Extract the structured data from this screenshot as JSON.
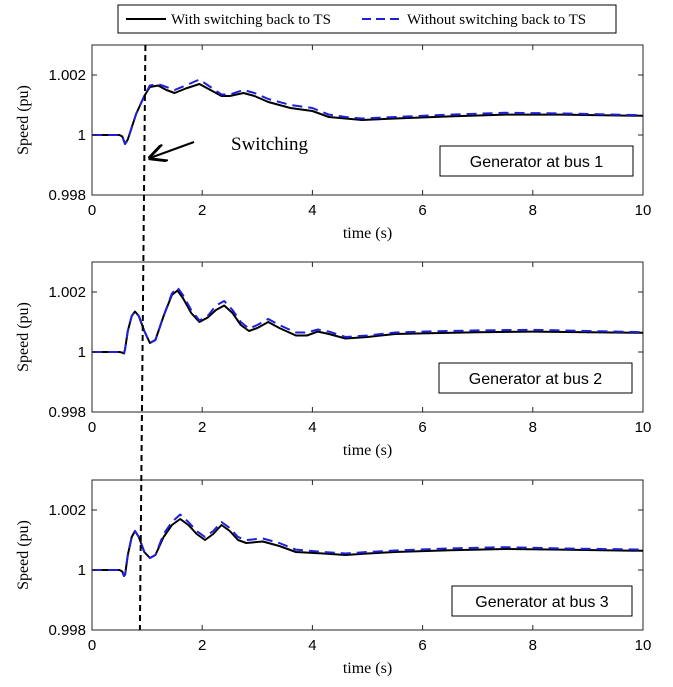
{
  "legend": {
    "items": [
      {
        "label": "With switching back to TS",
        "color": "#000000",
        "dash": "solid"
      },
      {
        "label": "Without switching back to TS",
        "color": "#1f1fd6",
        "dash": "dashed"
      }
    ],
    "placement": "top-center"
  },
  "annotation": {
    "text": "Switching"
  },
  "chart_data": [
    {
      "type": "line",
      "box_label": "Generator at bus 1",
      "xlabel": "time (s)",
      "ylabel": "Speed (pu)",
      "xlim": [
        0,
        10
      ],
      "ylim": [
        0.998,
        1.003
      ],
      "xticks": [
        0,
        2,
        4,
        6,
        8,
        10
      ],
      "yticks": [
        0.998,
        1,
        1.002
      ],
      "ytick_labels": [
        "0.998",
        "1",
        "1.002"
      ],
      "grid": false,
      "switch_time": 0.97,
      "series": [
        {
          "name": "With switching back to TS",
          "color": "#000000",
          "points": [
            [
              0,
              1.0
            ],
            [
              0.5,
              1.0
            ],
            [
              0.55,
              0.99995
            ],
            [
              0.6,
              0.9997
            ],
            [
              0.65,
              0.99985
            ],
            [
              0.8,
              1.0007
            ],
            [
              0.95,
              1.0013
            ],
            [
              1.05,
              1.0016
            ],
            [
              1.2,
              1.00165
            ],
            [
              1.35,
              1.0015
            ],
            [
              1.5,
              1.0014
            ],
            [
              1.7,
              1.00155
            ],
            [
              1.95,
              1.0017
            ],
            [
              2.15,
              1.0015
            ],
            [
              2.35,
              1.0013
            ],
            [
              2.5,
              1.0013
            ],
            [
              2.75,
              1.0014
            ],
            [
              2.95,
              1.0013
            ],
            [
              3.2,
              1.0011
            ],
            [
              3.6,
              1.0009
            ],
            [
              4.0,
              1.0008
            ],
            [
              4.3,
              1.0006
            ],
            [
              4.6,
              1.00055
            ],
            [
              4.9,
              1.0005
            ],
            [
              5.5,
              1.00055
            ],
            [
              6.5,
              1.00062
            ],
            [
              7.5,
              1.00068
            ],
            [
              8.5,
              1.00068
            ],
            [
              10,
              1.00064
            ]
          ]
        },
        {
          "name": "Without switching back to TS",
          "color": "#1f1fd6",
          "points": [
            [
              0,
              1.0
            ],
            [
              0.5,
              1.0
            ],
            [
              0.55,
              0.99995
            ],
            [
              0.6,
              0.9997
            ],
            [
              0.65,
              0.99985
            ],
            [
              0.8,
              1.0007
            ],
            [
              0.95,
              1.0013
            ],
            [
              1.05,
              1.00165
            ],
            [
              1.2,
              1.0017
            ],
            [
              1.35,
              1.0016
            ],
            [
              1.5,
              1.0015
            ],
            [
              1.7,
              1.00165
            ],
            [
              1.95,
              1.00185
            ],
            [
              2.15,
              1.0016
            ],
            [
              2.35,
              1.00135
            ],
            [
              2.5,
              1.00135
            ],
            [
              2.75,
              1.0015
            ],
            [
              2.95,
              1.0014
            ],
            [
              3.2,
              1.0012
            ],
            [
              3.6,
              1.001
            ],
            [
              4.0,
              1.0009
            ],
            [
              4.3,
              1.00068
            ],
            [
              4.6,
              1.0006
            ],
            [
              4.9,
              1.00055
            ],
            [
              5.5,
              1.0006
            ],
            [
              6.5,
              1.00068
            ],
            [
              7.5,
              1.00074
            ],
            [
              8.5,
              1.00072
            ],
            [
              10,
              1.00066
            ]
          ]
        }
      ]
    },
    {
      "type": "line",
      "box_label": "Generator at bus 2",
      "xlabel": "time (s)",
      "ylabel": "Speed (pu)",
      "xlim": [
        0,
        10
      ],
      "ylim": [
        0.998,
        1.003
      ],
      "xticks": [
        0,
        2,
        4,
        6,
        8,
        10
      ],
      "yticks": [
        0.998,
        1,
        1.002
      ],
      "ytick_labels": [
        "0.998",
        "1",
        "1.002"
      ],
      "grid": false,
      "switch_time": 0.92,
      "series": [
        {
          "name": "With switching back to TS",
          "color": "#000000",
          "points": [
            [
              0,
              1.0
            ],
            [
              0.5,
              1.0
            ],
            [
              0.55,
              0.99998
            ],
            [
              0.58,
              0.99995
            ],
            [
              0.6,
              1.0001
            ],
            [
              0.65,
              1.0007
            ],
            [
              0.72,
              1.0012
            ],
            [
              0.78,
              1.00135
            ],
            [
              0.85,
              1.0012
            ],
            [
              0.95,
              1.0007
            ],
            [
              1.05,
              1.0003
            ],
            [
              1.15,
              1.0004
            ],
            [
              1.3,
              1.0012
            ],
            [
              1.45,
              1.0019
            ],
            [
              1.55,
              1.00205
            ],
            [
              1.65,
              1.0018
            ],
            [
              1.8,
              1.0013
            ],
            [
              1.95,
              1.001
            ],
            [
              2.1,
              1.00115
            ],
            [
              2.25,
              1.0014
            ],
            [
              2.4,
              1.00155
            ],
            [
              2.55,
              1.0013
            ],
            [
              2.7,
              1.0009
            ],
            [
              2.85,
              1.0007
            ],
            [
              3.0,
              1.0008
            ],
            [
              3.2,
              1.001
            ],
            [
              3.4,
              1.0008
            ],
            [
              3.7,
              1.00055
            ],
            [
              3.9,
              1.00055
            ],
            [
              4.1,
              1.00068
            ],
            [
              4.3,
              1.0006
            ],
            [
              4.6,
              1.00045
            ],
            [
              5.0,
              1.0005
            ],
            [
              5.5,
              1.0006
            ],
            [
              6.0,
              1.00062
            ],
            [
              7.0,
              1.00066
            ],
            [
              8.0,
              1.00068
            ],
            [
              9.0,
              1.00066
            ],
            [
              10,
              1.00064
            ]
          ]
        },
        {
          "name": "Without switching back to TS",
          "color": "#1f1fd6",
          "points": [
            [
              0,
              1.0
            ],
            [
              0.5,
              1.0
            ],
            [
              0.55,
              0.99998
            ],
            [
              0.58,
              0.99995
            ],
            [
              0.6,
              1.0001
            ],
            [
              0.65,
              1.0007
            ],
            [
              0.72,
              1.0012
            ],
            [
              0.78,
              1.00135
            ],
            [
              0.85,
              1.0012
            ],
            [
              0.95,
              1.0007
            ],
            [
              1.05,
              1.0003
            ],
            [
              1.15,
              1.0004
            ],
            [
              1.3,
              1.0012
            ],
            [
              1.45,
              1.00195
            ],
            [
              1.55,
              1.00215
            ],
            [
              1.65,
              1.0019
            ],
            [
              1.8,
              1.0014
            ],
            [
              1.95,
              1.00105
            ],
            [
              2.1,
              1.0012
            ],
            [
              2.25,
              1.00155
            ],
            [
              2.4,
              1.0017
            ],
            [
              2.55,
              1.0014
            ],
            [
              2.7,
              1.001
            ],
            [
              2.85,
              1.00078
            ],
            [
              3.0,
              1.0009
            ],
            [
              3.2,
              1.0011
            ],
            [
              3.4,
              1.0009
            ],
            [
              3.7,
              1.00065
            ],
            [
              3.9,
              1.00065
            ],
            [
              4.1,
              1.00075
            ],
            [
              4.3,
              1.00068
            ],
            [
              4.6,
              1.0005
            ],
            [
              5.0,
              1.00055
            ],
            [
              5.5,
              1.00065
            ],
            [
              6.0,
              1.00068
            ],
            [
              7.0,
              1.00072
            ],
            [
              8.0,
              1.00074
            ],
            [
              9.0,
              1.0007
            ],
            [
              10,
              1.00066
            ]
          ]
        }
      ]
    },
    {
      "type": "line",
      "box_label": "Generator at bus 3",
      "xlabel": "time (s)",
      "ylabel": "Speed (pu)",
      "xlim": [
        0,
        10
      ],
      "ylim": [
        0.998,
        1.003
      ],
      "xticks": [
        0,
        2,
        4,
        6,
        8,
        10
      ],
      "yticks": [
        0.998,
        1,
        1.002
      ],
      "ytick_labels": [
        "0.998",
        "1",
        "1.002"
      ],
      "grid": false,
      "switch_time": 0.87,
      "series": [
        {
          "name": "With switching back to TS",
          "color": "#000000",
          "points": [
            [
              0,
              1.0
            ],
            [
              0.5,
              1.0
            ],
            [
              0.55,
              0.99995
            ],
            [
              0.58,
              0.9998
            ],
            [
              0.6,
              0.99985
            ],
            [
              0.65,
              1.0005
            ],
            [
              0.72,
              1.0011
            ],
            [
              0.78,
              1.0013
            ],
            [
              0.85,
              1.0011
            ],
            [
              0.95,
              1.0006
            ],
            [
              1.05,
              1.0004
            ],
            [
              1.15,
              1.0005
            ],
            [
              1.3,
              1.0011
            ],
            [
              1.45,
              1.0015
            ],
            [
              1.6,
              1.0017
            ],
            [
              1.75,
              1.0015
            ],
            [
              1.9,
              1.0012
            ],
            [
              2.05,
              1.001
            ],
            [
              2.2,
              1.0012
            ],
            [
              2.35,
              1.0015
            ],
            [
              2.5,
              1.0013
            ],
            [
              2.65,
              1.001
            ],
            [
              2.8,
              1.0009
            ],
            [
              3.1,
              1.00095
            ],
            [
              3.4,
              1.0008
            ],
            [
              3.7,
              1.0006
            ],
            [
              4.2,
              1.00055
            ],
            [
              4.6,
              1.0005
            ],
            [
              5.0,
              1.00055
            ],
            [
              5.5,
              1.0006
            ],
            [
              6.5,
              1.00066
            ],
            [
              7.5,
              1.0007
            ],
            [
              8.5,
              1.00068
            ],
            [
              10,
              1.00064
            ]
          ]
        },
        {
          "name": "Without switching back to TS",
          "color": "#1f1fd6",
          "points": [
            [
              0,
              1.0
            ],
            [
              0.5,
              1.0
            ],
            [
              0.55,
              0.99995
            ],
            [
              0.58,
              0.9998
            ],
            [
              0.6,
              0.99985
            ],
            [
              0.65,
              1.0005
            ],
            [
              0.72,
              1.0011
            ],
            [
              0.78,
              1.0013
            ],
            [
              0.85,
              1.0011
            ],
            [
              0.95,
              1.0006
            ],
            [
              1.05,
              1.0004
            ],
            [
              1.15,
              1.0005
            ],
            [
              1.3,
              1.0012
            ],
            [
              1.45,
              1.0016
            ],
            [
              1.6,
              1.00185
            ],
            [
              1.75,
              1.0016
            ],
            [
              1.9,
              1.0013
            ],
            [
              2.05,
              1.0011
            ],
            [
              2.2,
              1.0013
            ],
            [
              2.35,
              1.0016
            ],
            [
              2.5,
              1.0014
            ],
            [
              2.65,
              1.0011
            ],
            [
              2.8,
              1.001
            ],
            [
              3.1,
              1.00105
            ],
            [
              3.4,
              1.0009
            ],
            [
              3.7,
              1.00068
            ],
            [
              4.2,
              1.0006
            ],
            [
              4.6,
              1.00055
            ],
            [
              5.0,
              1.0006
            ],
            [
              5.5,
              1.00065
            ],
            [
              6.5,
              1.00072
            ],
            [
              7.5,
              1.00076
            ],
            [
              8.5,
              1.00072
            ],
            [
              10,
              1.00068
            ]
          ]
        }
      ]
    }
  ]
}
